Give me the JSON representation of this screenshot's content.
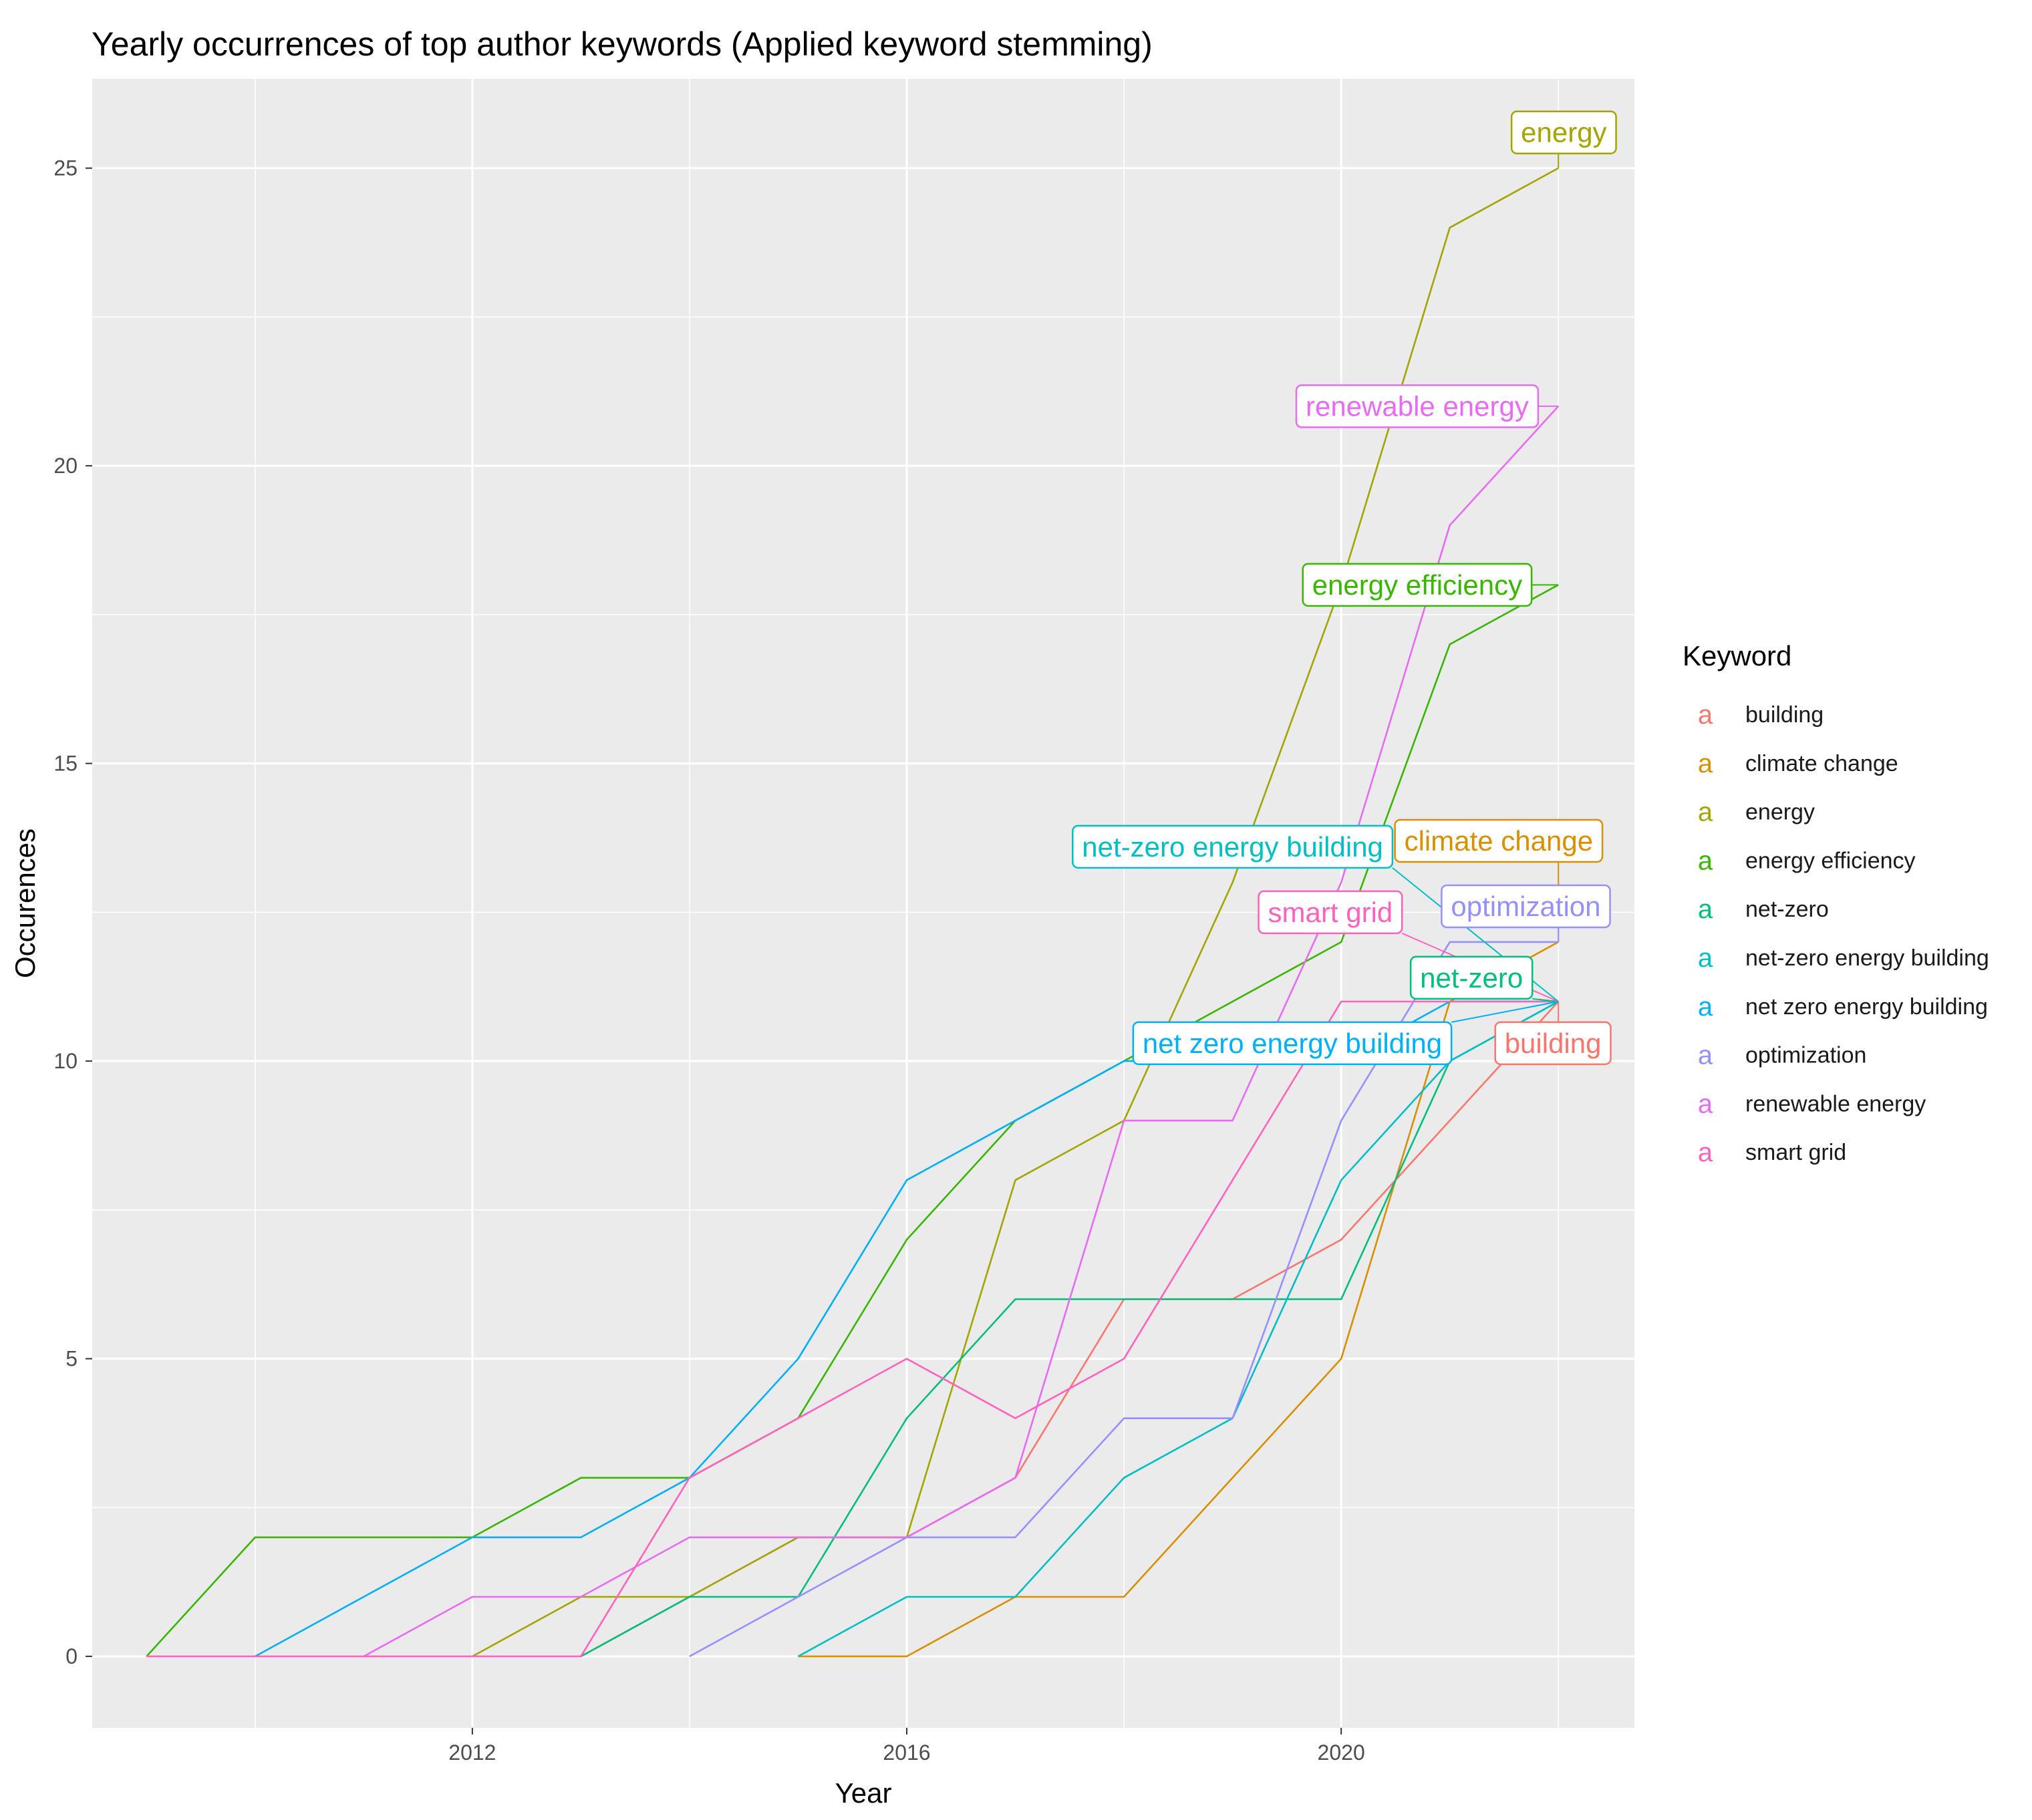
{
  "chart_data": {
    "type": "line",
    "title": "Yearly occurrences of top author keywords (Applied keyword stemming)",
    "xlabel": "Year",
    "ylabel": "Occurences",
    "xlim": [
      2008.5,
      2022.7
    ],
    "ylim": [
      -1.2,
      26.5
    ],
    "x_ticks": [
      2012,
      2016,
      2020
    ],
    "y_ticks": [
      0,
      5,
      10,
      15,
      20,
      25
    ],
    "grid": true,
    "legend_title": "Keyword",
    "legend_placement": "right",
    "legend_key_glyph": "a",
    "series": [
      {
        "name": "building",
        "color": "#F8766D",
        "points": [
          [
            2013,
            0
          ],
          [
            2014,
            1
          ],
          [
            2015,
            2
          ],
          [
            2016,
            2
          ],
          [
            2017,
            3
          ],
          [
            2018,
            6
          ],
          [
            2019,
            6
          ],
          [
            2020,
            7
          ],
          [
            2021,
            9
          ],
          [
            2022,
            11
          ]
        ]
      },
      {
        "name": "climate change",
        "color": "#D89000",
        "points": [
          [
            2015,
            0
          ],
          [
            2016,
            0
          ],
          [
            2017,
            1
          ],
          [
            2018,
            1
          ],
          [
            2019,
            3
          ],
          [
            2020,
            5
          ],
          [
            2021,
            11
          ],
          [
            2022,
            12
          ]
        ]
      },
      {
        "name": "energy",
        "color": "#A3A500",
        "points": [
          [
            2012,
            0
          ],
          [
            2013,
            1
          ],
          [
            2014,
            1
          ],
          [
            2015,
            2
          ],
          [
            2016,
            2
          ],
          [
            2017,
            8
          ],
          [
            2018,
            9
          ],
          [
            2019,
            13
          ],
          [
            2020,
            18
          ],
          [
            2021,
            24
          ],
          [
            2022,
            25
          ]
        ]
      },
      {
        "name": "energy efficiency",
        "color": "#39B600",
        "points": [
          [
            2009,
            0
          ],
          [
            2010,
            2
          ],
          [
            2011,
            2
          ],
          [
            2012,
            2
          ],
          [
            2013,
            3
          ],
          [
            2014,
            3
          ],
          [
            2015,
            4
          ],
          [
            2016,
            7
          ],
          [
            2017,
            9
          ],
          [
            2018,
            10
          ],
          [
            2019,
            11
          ],
          [
            2020,
            12
          ],
          [
            2021,
            17
          ],
          [
            2022,
            18
          ]
        ]
      },
      {
        "name": "net-zero",
        "color": "#00BF7D",
        "points": [
          [
            2013,
            0
          ],
          [
            2014,
            1
          ],
          [
            2015,
            1
          ],
          [
            2016,
            4
          ],
          [
            2017,
            6
          ],
          [
            2018,
            6
          ],
          [
            2019,
            6
          ],
          [
            2020,
            6
          ],
          [
            2021,
            10
          ],
          [
            2022,
            11
          ]
        ]
      },
      {
        "name": "net-zero energy building",
        "color": "#00BFC4",
        "points": [
          [
            2015,
            0
          ],
          [
            2016,
            1
          ],
          [
            2017,
            1
          ],
          [
            2018,
            3
          ],
          [
            2019,
            4
          ],
          [
            2020,
            8
          ],
          [
            2021,
            10
          ],
          [
            2022,
            11
          ]
        ]
      },
      {
        "name": "net zero energy building",
        "color": "#00B0F6",
        "points": [
          [
            2010,
            0
          ],
          [
            2011,
            1
          ],
          [
            2012,
            2
          ],
          [
            2013,
            2
          ],
          [
            2014,
            3
          ],
          [
            2015,
            5
          ],
          [
            2016,
            8
          ],
          [
            2017,
            9
          ],
          [
            2018,
            10
          ],
          [
            2019,
            10
          ],
          [
            2020,
            10
          ],
          [
            2021,
            11
          ],
          [
            2022,
            11
          ]
        ]
      },
      {
        "name": "optimization",
        "color": "#9590FF",
        "points": [
          [
            2014,
            0
          ],
          [
            2015,
            1
          ],
          [
            2016,
            2
          ],
          [
            2017,
            2
          ],
          [
            2018,
            4
          ],
          [
            2019,
            4
          ],
          [
            2020,
            9
          ],
          [
            2021,
            12
          ],
          [
            2022,
            12
          ]
        ]
      },
      {
        "name": "renewable energy",
        "color": "#E76BF3",
        "points": [
          [
            2011,
            0
          ],
          [
            2012,
            1
          ],
          [
            2013,
            1
          ],
          [
            2014,
            2
          ],
          [
            2015,
            2
          ],
          [
            2016,
            2
          ],
          [
            2017,
            3
          ],
          [
            2018,
            9
          ],
          [
            2019,
            9
          ],
          [
            2020,
            13
          ],
          [
            2021,
            19
          ],
          [
            2022,
            21
          ]
        ]
      },
      {
        "name": "smart grid",
        "color": "#FF62BC",
        "points": [
          [
            2009,
            0
          ],
          [
            2010,
            0
          ],
          [
            2011,
            0
          ],
          [
            2012,
            0
          ],
          [
            2013,
            0
          ],
          [
            2014,
            3
          ],
          [
            2015,
            4
          ],
          [
            2016,
            5
          ],
          [
            2017,
            4
          ],
          [
            2018,
            5
          ],
          [
            2019,
            8
          ],
          [
            2020,
            11
          ],
          [
            2021,
            11
          ],
          [
            2022,
            11
          ]
        ]
      }
    ],
    "annotations": [
      {
        "series": "energy",
        "label": "energy",
        "x": 2022.05,
        "y": 25.6
      },
      {
        "series": "renewable energy",
        "label": "renewable energy",
        "x": 2020.7,
        "y": 21.0
      },
      {
        "series": "energy efficiency",
        "label": "energy efficiency",
        "x": 2020.7,
        "y": 18.0
      },
      {
        "series": "net-zero energy building",
        "label": "net-zero energy building",
        "x": 2019.0,
        "y": 13.6
      },
      {
        "series": "climate change",
        "label": "climate change",
        "x": 2021.45,
        "y": 13.7
      },
      {
        "series": "optimization",
        "label": "optimization",
        "x": 2021.7,
        "y": 12.6
      },
      {
        "series": "smart grid",
        "label": "smart grid",
        "x": 2019.9,
        "y": 12.5
      },
      {
        "series": "net-zero",
        "label": "net-zero",
        "x": 2021.2,
        "y": 11.4
      },
      {
        "series": "net zero energy building",
        "label": "net zero energy building",
        "x": 2019.55,
        "y": 10.3
      },
      {
        "series": "building",
        "label": "building",
        "x": 2021.95,
        "y": 10.3
      }
    ]
  }
}
